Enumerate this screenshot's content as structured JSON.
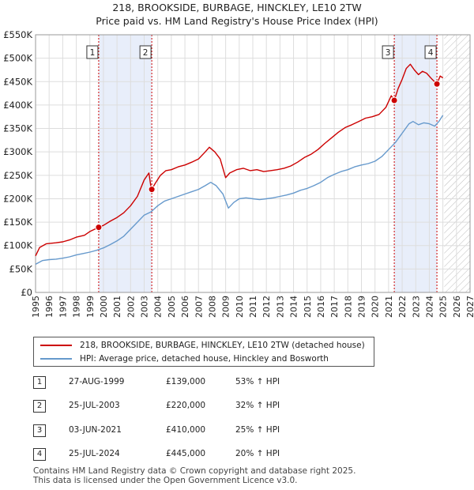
{
  "chart_data": {
    "type": "line",
    "title": "218, BROOKSIDE, BURBAGE, HINCKLEY, LE10 2TW",
    "subtitle": "Price paid vs. HM Land Registry's House Price Index (HPI)",
    "x_range": [
      1995,
      2027
    ],
    "ylim": [
      0,
      550000
    ],
    "y_ticks": [
      0,
      50000,
      100000,
      150000,
      200000,
      250000,
      300000,
      350000,
      400000,
      450000,
      500000,
      550000
    ],
    "y_tick_labels": [
      "£0",
      "£50K",
      "£100K",
      "£150K",
      "£200K",
      "£250K",
      "£300K",
      "£350K",
      "£400K",
      "£450K",
      "£500K",
      "£550K"
    ],
    "x_ticks": [
      1995,
      1996,
      1997,
      1998,
      1999,
      2000,
      2001,
      2002,
      2003,
      2004,
      2005,
      2006,
      2007,
      2008,
      2009,
      2010,
      2011,
      2012,
      2013,
      2014,
      2015,
      2016,
      2017,
      2018,
      2019,
      2020,
      2021,
      2022,
      2023,
      2024,
      2025,
      2026,
      2027
    ],
    "x_tick_labels": [
      "1995",
      "1996",
      "1997",
      "1998",
      "1999",
      "2000",
      "2001",
      "2002",
      "2003",
      "2004",
      "2005",
      "2006",
      "2007",
      "2008",
      "2009",
      "2010",
      "2011",
      "2012",
      "2013",
      "2014",
      "2015",
      "2016",
      "2017",
      "2018",
      "2019",
      "2020",
      "2021",
      "2022",
      "2023",
      "2024",
      "2025",
      "2026",
      "2027"
    ],
    "grid": true,
    "future_hatch_from": 2025.1,
    "shaded_spans": [
      [
        1999.65,
        2003.56
      ],
      [
        2021.42,
        2024.56
      ]
    ],
    "series": [
      {
        "name": "218, BROOKSIDE, BURBAGE, HINCKLEY, LE10 2TW (detached house)",
        "color": "#cc0000",
        "points": [
          [
            1995.0,
            78000
          ],
          [
            1995.3,
            96000
          ],
          [
            1995.8,
            104000
          ],
          [
            1996.5,
            106000
          ],
          [
            1997.0,
            108000
          ],
          [
            1997.5,
            112000
          ],
          [
            1998.0,
            118000
          ],
          [
            1998.6,
            122000
          ],
          [
            1999.0,
            130000
          ],
          [
            1999.65,
            139000
          ],
          [
            2000.0,
            143000
          ],
          [
            2000.5,
            152000
          ],
          [
            2001.0,
            160000
          ],
          [
            2001.5,
            170000
          ],
          [
            2002.0,
            185000
          ],
          [
            2002.5,
            205000
          ],
          [
            2003.0,
            240000
          ],
          [
            2003.35,
            255000
          ],
          [
            2003.5,
            225000
          ],
          [
            2003.56,
            220000
          ],
          [
            2003.8,
            232000
          ],
          [
            2004.2,
            250000
          ],
          [
            2004.6,
            260000
          ],
          [
            2005.0,
            262000
          ],
          [
            2005.5,
            268000
          ],
          [
            2006.0,
            272000
          ],
          [
            2006.5,
            278000
          ],
          [
            2007.0,
            285000
          ],
          [
            2007.5,
            300000
          ],
          [
            2007.8,
            310000
          ],
          [
            2008.2,
            300000
          ],
          [
            2008.6,
            285000
          ],
          [
            2009.0,
            245000
          ],
          [
            2009.3,
            255000
          ],
          [
            2009.8,
            262000
          ],
          [
            2010.3,
            265000
          ],
          [
            2010.8,
            260000
          ],
          [
            2011.3,
            262000
          ],
          [
            2011.8,
            258000
          ],
          [
            2012.3,
            260000
          ],
          [
            2012.8,
            262000
          ],
          [
            2013.3,
            265000
          ],
          [
            2013.8,
            270000
          ],
          [
            2014.3,
            278000
          ],
          [
            2014.8,
            288000
          ],
          [
            2015.3,
            295000
          ],
          [
            2015.8,
            305000
          ],
          [
            2016.3,
            318000
          ],
          [
            2016.8,
            330000
          ],
          [
            2017.3,
            342000
          ],
          [
            2017.8,
            352000
          ],
          [
            2018.3,
            358000
          ],
          [
            2018.8,
            365000
          ],
          [
            2019.3,
            372000
          ],
          [
            2019.8,
            375000
          ],
          [
            2020.3,
            380000
          ],
          [
            2020.8,
            395000
          ],
          [
            2021.2,
            420000
          ],
          [
            2021.42,
            410000
          ],
          [
            2021.7,
            435000
          ],
          [
            2022.0,
            455000
          ],
          [
            2022.3,
            478000
          ],
          [
            2022.6,
            487000
          ],
          [
            2022.9,
            475000
          ],
          [
            2023.2,
            465000
          ],
          [
            2023.5,
            472000
          ],
          [
            2023.8,
            468000
          ],
          [
            2024.2,
            455000
          ],
          [
            2024.56,
            445000
          ],
          [
            2024.8,
            462000
          ],
          [
            2025.0,
            458000
          ]
        ]
      },
      {
        "name": "HPI: Average price, detached house, Hinckley and Bosworth",
        "color": "#6699cc",
        "points": [
          [
            1995.0,
            60000
          ],
          [
            1995.5,
            68000
          ],
          [
            1996.0,
            70000
          ],
          [
            1996.5,
            71000
          ],
          [
            1997.0,
            73000
          ],
          [
            1997.5,
            76000
          ],
          [
            1998.0,
            80000
          ],
          [
            1998.5,
            83000
          ],
          [
            1999.0,
            86000
          ],
          [
            1999.5,
            90000
          ],
          [
            2000.0,
            95000
          ],
          [
            2000.5,
            102000
          ],
          [
            2001.0,
            110000
          ],
          [
            2001.5,
            120000
          ],
          [
            2002.0,
            135000
          ],
          [
            2002.5,
            150000
          ],
          [
            2003.0,
            165000
          ],
          [
            2003.5,
            172000
          ],
          [
            2004.0,
            185000
          ],
          [
            2004.5,
            195000
          ],
          [
            2005.0,
            200000
          ],
          [
            2005.5,
            205000
          ],
          [
            2006.0,
            210000
          ],
          [
            2006.5,
            215000
          ],
          [
            2007.0,
            220000
          ],
          [
            2007.5,
            228000
          ],
          [
            2007.9,
            235000
          ],
          [
            2008.3,
            228000
          ],
          [
            2008.8,
            210000
          ],
          [
            2009.2,
            180000
          ],
          [
            2009.6,
            192000
          ],
          [
            2010.0,
            200000
          ],
          [
            2010.5,
            202000
          ],
          [
            2011.0,
            200000
          ],
          [
            2011.5,
            198000
          ],
          [
            2012.0,
            200000
          ],
          [
            2012.5,
            202000
          ],
          [
            2013.0,
            205000
          ],
          [
            2013.5,
            208000
          ],
          [
            2014.0,
            212000
          ],
          [
            2014.5,
            218000
          ],
          [
            2015.0,
            222000
          ],
          [
            2015.5,
            228000
          ],
          [
            2016.0,
            235000
          ],
          [
            2016.5,
            245000
          ],
          [
            2017.0,
            252000
          ],
          [
            2017.5,
            258000
          ],
          [
            2018.0,
            262000
          ],
          [
            2018.5,
            268000
          ],
          [
            2019.0,
            272000
          ],
          [
            2019.5,
            275000
          ],
          [
            2020.0,
            280000
          ],
          [
            2020.5,
            290000
          ],
          [
            2021.0,
            305000
          ],
          [
            2021.5,
            320000
          ],
          [
            2022.0,
            340000
          ],
          [
            2022.5,
            360000
          ],
          [
            2022.8,
            365000
          ],
          [
            2023.2,
            358000
          ],
          [
            2023.6,
            362000
          ],
          [
            2024.0,
            360000
          ],
          [
            2024.4,
            355000
          ],
          [
            2024.7,
            365000
          ],
          [
            2025.0,
            378000
          ]
        ]
      }
    ],
    "markers": [
      {
        "label": "1",
        "x": 1999.65,
        "y": 139000
      },
      {
        "label": "2",
        "x": 2003.56,
        "y": 220000
      },
      {
        "label": "3",
        "x": 2021.42,
        "y": 410000
      },
      {
        "label": "4",
        "x": 2024.56,
        "y": 445000
      }
    ]
  },
  "legend": {
    "entries": [
      {
        "label": "218, BROOKSIDE, BURBAGE, HINCKLEY, LE10 2TW (detached house)",
        "color": "#cc0000"
      },
      {
        "label": "HPI: Average price, detached house, Hinckley and Bosworth",
        "color": "#6699cc"
      }
    ]
  },
  "transactions": [
    {
      "num": "1",
      "date": "27-AUG-1999",
      "price": "£139,000",
      "hpi": "53% ↑ HPI"
    },
    {
      "num": "2",
      "date": "25-JUL-2003",
      "price": "£220,000",
      "hpi": "32% ↑ HPI"
    },
    {
      "num": "3",
      "date": "03-JUN-2021",
      "price": "£410,000",
      "hpi": "25% ↑ HPI"
    },
    {
      "num": "4",
      "date": "25-JUL-2024",
      "price": "£445,000",
      "hpi": "20% ↑ HPI"
    }
  ],
  "footer": {
    "line1": "Contains HM Land Registry data © Crown copyright and database right 2025.",
    "line2": "This data is licensed under the Open Government Licence v3.0."
  }
}
